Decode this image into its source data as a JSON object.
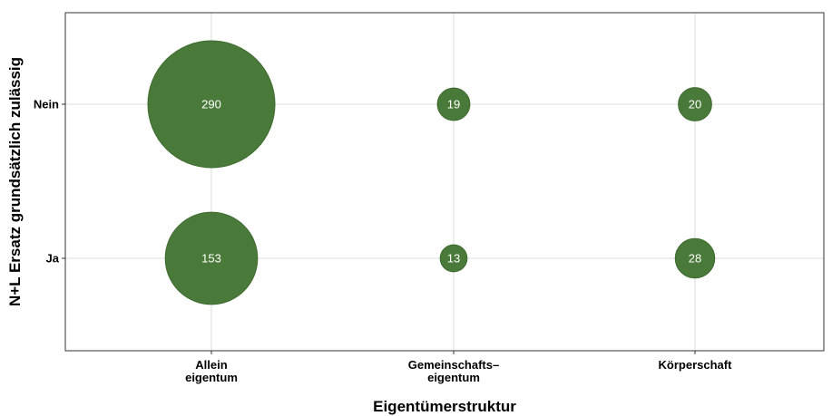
{
  "chart_data": {
    "type": "scatter",
    "subtype": "bubble",
    "title": "",
    "xlabel": "Eigentümerstruktur",
    "ylabel": "N+L Ersatz grundsätzlich zulässig",
    "x_categories": [
      [
        "Allein",
        "eigentum"
      ],
      [
        "Gemeinschafts–",
        "eigentum"
      ],
      [
        "Körperschaft"
      ]
    ],
    "y_categories": [
      "Ja",
      "Nein"
    ],
    "points": [
      {
        "x": 0,
        "y": 1,
        "value": 290
      },
      {
        "x": 1,
        "y": 1,
        "value": 19
      },
      {
        "x": 2,
        "y": 1,
        "value": 20
      },
      {
        "x": 0,
        "y": 0,
        "value": 153
      },
      {
        "x": 1,
        "y": 0,
        "value": 13
      },
      {
        "x": 2,
        "y": 0,
        "value": 28
      }
    ],
    "grid": true,
    "legend": "none",
    "colors": {
      "bubble_fill": "#4a7a3a",
      "bubble_stroke": "#3d6b2f",
      "grid": "#dddddd",
      "panel_border": "#333333",
      "label_text": "#ffffff"
    }
  }
}
